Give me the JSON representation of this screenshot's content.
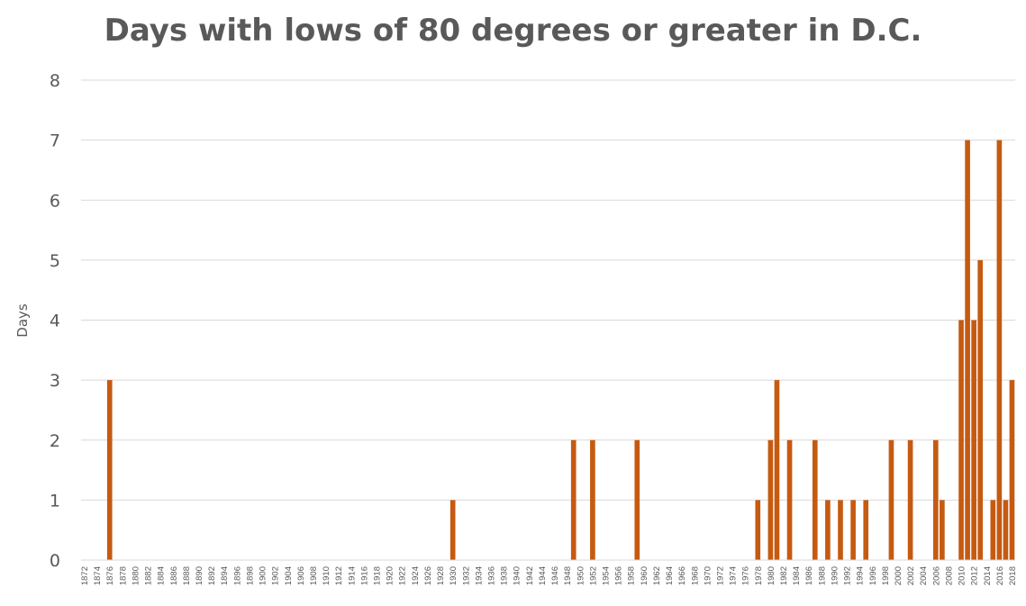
{
  "chart_data": {
    "type": "bar",
    "title": "Days with lows of 80 degrees or greater in D.C.",
    "xlabel": "",
    "ylabel": "Days",
    "ylim": [
      0,
      8
    ],
    "yticks": [
      0,
      1,
      2,
      3,
      4,
      5,
      6,
      7,
      8
    ],
    "grid": true,
    "legend": "none",
    "bar_color": "#C55A11",
    "grid_color": "#D9D9D9",
    "text_color": "#595959",
    "x_start": 1872,
    "x_end": 2018,
    "x_tick_step": 2,
    "series": [
      {
        "x": [
          1876,
          1930,
          1949,
          1952,
          1959,
          1978,
          1980,
          1981,
          1983,
          1987,
          1989,
          1991,
          1993,
          1995,
          1999,
          2002,
          2006,
          2007,
          2010,
          2011,
          2012,
          2013,
          2015,
          2016,
          2017,
          2018
        ],
        "values": [
          3,
          1,
          2,
          2,
          2,
          1,
          2,
          3,
          2,
          2,
          1,
          1,
          1,
          1,
          2,
          2,
          2,
          1,
          4,
          7,
          4,
          5,
          1,
          7,
          1,
          3
        ]
      }
    ]
  }
}
